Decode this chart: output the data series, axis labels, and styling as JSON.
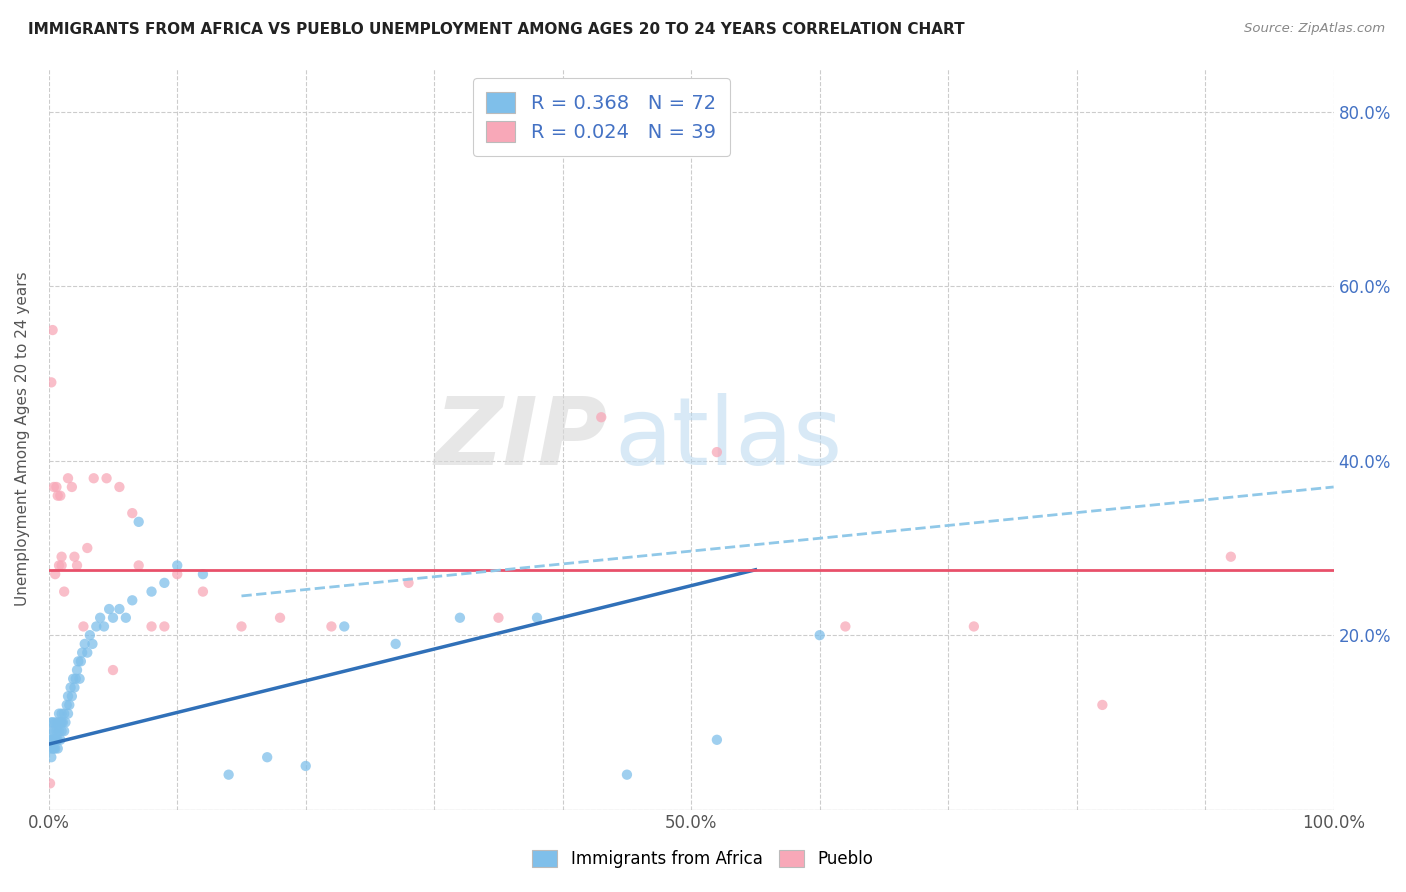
{
  "title": "IMMIGRANTS FROM AFRICA VS PUEBLO UNEMPLOYMENT AMONG AGES 20 TO 24 YEARS CORRELATION CHART",
  "source": "Source: ZipAtlas.com",
  "ylabel": "Unemployment Among Ages 20 to 24 years",
  "xlim": [
    0.0,
    1.0
  ],
  "ylim": [
    0.0,
    0.85
  ],
  "x_ticks": [
    0.0,
    0.1,
    0.2,
    0.3,
    0.4,
    0.5,
    0.6,
    0.7,
    0.8,
    0.9,
    1.0
  ],
  "x_tick_labels": [
    "0.0%",
    "",
    "",
    "",
    "",
    "50.0%",
    "",
    "",
    "",
    "",
    "100.0%"
  ],
  "y_ticks": [
    0.0,
    0.2,
    0.4,
    0.6,
    0.8
  ],
  "y_right_labels": [
    "",
    "20.0%",
    "40.0%",
    "60.0%",
    "80.0%"
  ],
  "blue_color": "#7fbfea",
  "pink_color": "#f8a8b8",
  "blue_line_color": "#3070b8",
  "pink_line_color": "#e8506a",
  "dashed_line_color": "#90c8e8",
  "legend_blue_label": "Immigrants from Africa",
  "legend_pink_label": "Pueblo",
  "watermark_zip": "ZIP",
  "watermark_atlas": "atlas",
  "blue_line_x0": 0.0,
  "blue_line_y0": 0.075,
  "blue_line_x1": 0.55,
  "blue_line_y1": 0.275,
  "pink_line_x0": 0.0,
  "pink_line_x1": 1.0,
  "pink_line_y": 0.275,
  "dashed_line_x0": 0.15,
  "dashed_line_y0": 0.245,
  "dashed_line_x1": 1.0,
  "dashed_line_y1": 0.37,
  "blue_scatter_x": [
    0.001,
    0.001,
    0.002,
    0.002,
    0.002,
    0.003,
    0.003,
    0.003,
    0.003,
    0.004,
    0.004,
    0.004,
    0.005,
    0.005,
    0.005,
    0.006,
    0.006,
    0.007,
    0.007,
    0.007,
    0.008,
    0.008,
    0.009,
    0.009,
    0.01,
    0.01,
    0.01,
    0.011,
    0.012,
    0.012,
    0.013,
    0.014,
    0.015,
    0.015,
    0.016,
    0.017,
    0.018,
    0.019,
    0.02,
    0.021,
    0.022,
    0.023,
    0.024,
    0.025,
    0.026,
    0.028,
    0.03,
    0.032,
    0.034,
    0.037,
    0.04,
    0.043,
    0.047,
    0.05,
    0.055,
    0.06,
    0.065,
    0.07,
    0.08,
    0.09,
    0.1,
    0.12,
    0.14,
    0.17,
    0.2,
    0.23,
    0.27,
    0.32,
    0.38,
    0.45,
    0.52,
    0.6
  ],
  "blue_scatter_y": [
    0.07,
    0.08,
    0.06,
    0.08,
    0.1,
    0.07,
    0.09,
    0.08,
    0.1,
    0.07,
    0.08,
    0.09,
    0.07,
    0.08,
    0.1,
    0.08,
    0.09,
    0.07,
    0.08,
    0.1,
    0.09,
    0.11,
    0.08,
    0.1,
    0.09,
    0.1,
    0.11,
    0.1,
    0.09,
    0.11,
    0.1,
    0.12,
    0.11,
    0.13,
    0.12,
    0.14,
    0.13,
    0.15,
    0.14,
    0.15,
    0.16,
    0.17,
    0.15,
    0.17,
    0.18,
    0.19,
    0.18,
    0.2,
    0.19,
    0.21,
    0.22,
    0.21,
    0.23,
    0.22,
    0.23,
    0.22,
    0.24,
    0.33,
    0.25,
    0.26,
    0.28,
    0.27,
    0.04,
    0.06,
    0.05,
    0.21,
    0.19,
    0.22,
    0.22,
    0.04,
    0.08,
    0.2
  ],
  "pink_scatter_x": [
    0.001,
    0.002,
    0.003,
    0.004,
    0.005,
    0.006,
    0.007,
    0.008,
    0.009,
    0.01,
    0.012,
    0.015,
    0.018,
    0.022,
    0.027,
    0.035,
    0.045,
    0.055,
    0.065,
    0.08,
    0.1,
    0.12,
    0.15,
    0.18,
    0.22,
    0.28,
    0.35,
    0.43,
    0.52,
    0.62,
    0.72,
    0.82,
    0.92,
    0.01,
    0.02,
    0.03,
    0.05,
    0.07,
    0.09
  ],
  "pink_scatter_y": [
    0.03,
    0.49,
    0.55,
    0.37,
    0.27,
    0.37,
    0.36,
    0.28,
    0.36,
    0.29,
    0.25,
    0.38,
    0.37,
    0.28,
    0.21,
    0.38,
    0.38,
    0.37,
    0.34,
    0.21,
    0.27,
    0.25,
    0.21,
    0.22,
    0.21,
    0.26,
    0.22,
    0.45,
    0.41,
    0.21,
    0.21,
    0.12,
    0.29,
    0.28,
    0.29,
    0.3,
    0.16,
    0.28,
    0.21
  ]
}
